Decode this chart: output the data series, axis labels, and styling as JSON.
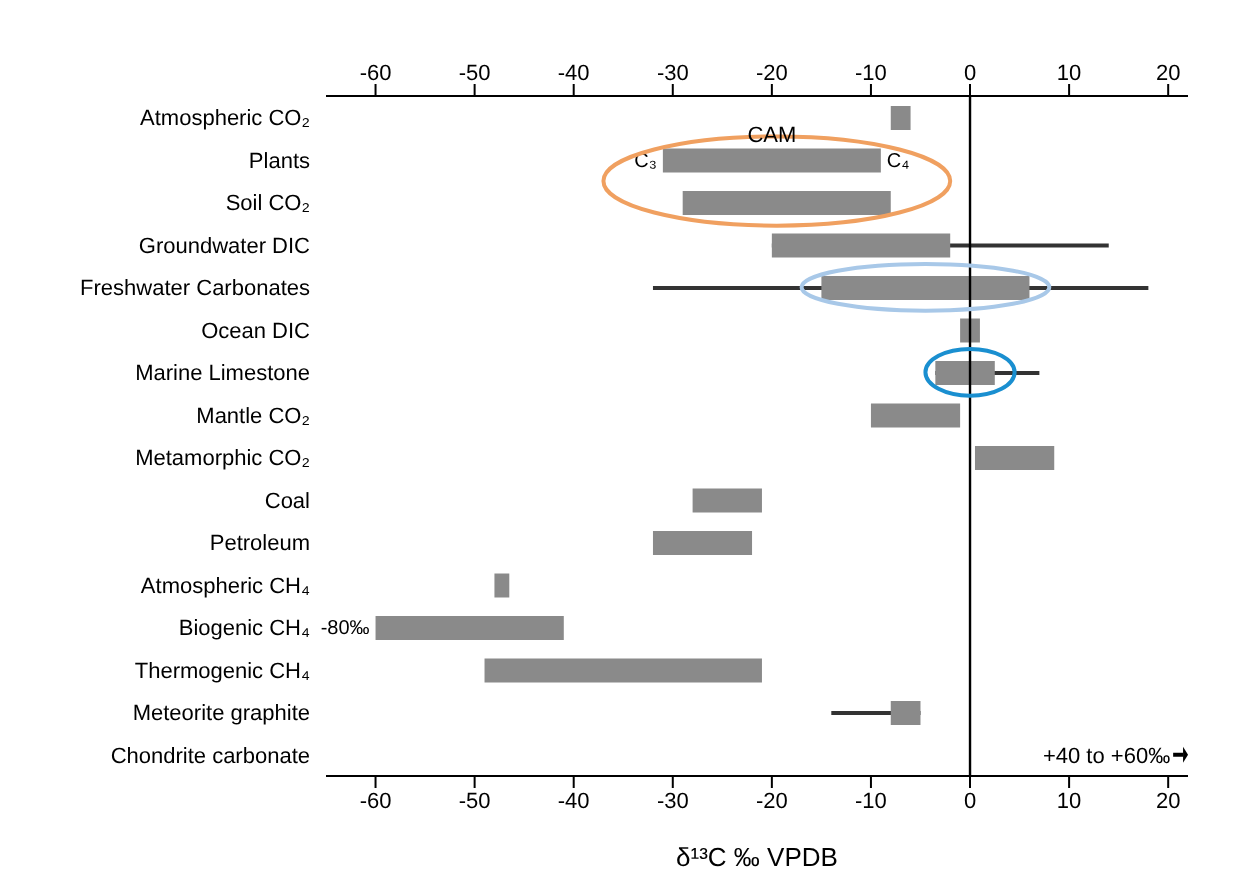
{
  "chart_data": {
    "type": "bar",
    "orientation": "horizontal",
    "xlabel": "δ¹³C ‰ VPDB",
    "categories": [
      "Atmospheric CO₂",
      "Plants",
      "Soil CO₂",
      "Groundwater DIC",
      "Freshwater Carbonates",
      "Ocean DIC",
      "Marine Limestone",
      "Mantle CO₂",
      "Metamorphic CO₂",
      "Coal",
      "Petroleum",
      "Atmospheric CH₄",
      "Biogenic CH₄",
      "Thermogenic CH₄",
      "Meteorite graphite",
      "Chondrite carbonate"
    ],
    "series": [
      {
        "color": "#333333",
        "base": [
          null,
          null,
          null,
          -20,
          -32,
          null,
          -3.5,
          null,
          null,
          null,
          null,
          null,
          null,
          null,
          -14,
          null
        ],
        "values": [
          null,
          null,
          null,
          34,
          50,
          null,
          10.5,
          null,
          null,
          null,
          null,
          null,
          null,
          null,
          9,
          null
        ]
      },
      {
        "color": "#8a8a8a",
        "base": [
          -8,
          -31,
          -29,
          -20,
          -15,
          -1,
          -3.5,
          -10,
          0.5,
          -28,
          -32,
          -48,
          -60,
          -49,
          -8,
          null
        ],
        "values": [
          2,
          22,
          21,
          18,
          21,
          2,
          6,
          9,
          8,
          7,
          10,
          1.5,
          19,
          28,
          3,
          null
        ]
      }
    ],
    "xlim": [
      -65,
      22
    ],
    "xticks": [
      -60,
      -50,
      -40,
      -30,
      -20,
      -10,
      0,
      10,
      20
    ],
    "x2lim": [
      -65,
      22
    ],
    "x2ticks": [
      -60,
      -50,
      -40,
      -30,
      -20,
      -10,
      0,
      10,
      20
    ],
    "ref_lines": [
      {
        "axis": "x",
        "value": 0,
        "color": "#000000"
      }
    ],
    "annotations": [
      {
        "text": "C₃",
        "x": -31,
        "y": "Plants"
      },
      {
        "text": "C₄",
        "x": -9,
        "y": "Plants"
      },
      "CAM",
      {
        "text": "-80‰",
        "x": -60,
        "y": "Biogenic CH₄"
      },
      "+40 to +60‰"
    ],
    "grid": false,
    "legend": false
  }
}
